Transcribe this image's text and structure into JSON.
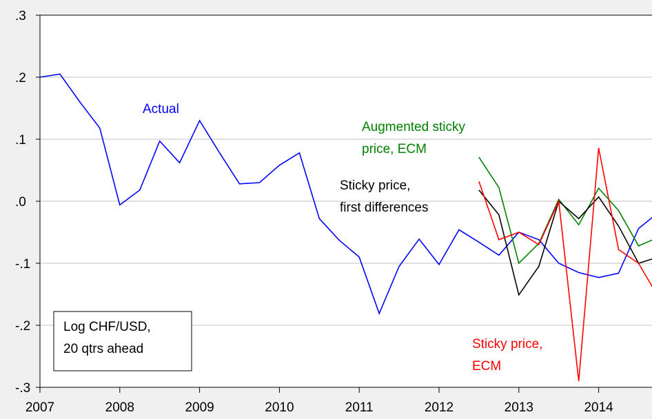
{
  "chart_data": {
    "type": "line",
    "x": [
      2007,
      2007.25,
      2007.5,
      2007.75,
      2008,
      2008.25,
      2008.5,
      2008.75,
      2009,
      2009.25,
      2009.5,
      2009.75,
      2010,
      2010.25,
      2010.5,
      2010.75,
      2011,
      2011.25,
      2011.5,
      2011.75,
      2012,
      2012.25,
      2012.5,
      2012.75,
      2013,
      2013.25,
      2013.5,
      2013.75,
      2014,
      2014.25,
      2014.5,
      2014.75
    ],
    "series": [
      {
        "name": "Actual",
        "color": "#0000ff",
        "values": [
          0.2,
          0.205,
          0.16,
          0.118,
          -0.006,
          0.018,
          0.097,
          0.062,
          0.13,
          0.078,
          0.028,
          0.03,
          0.058,
          0.078,
          -0.028,
          -0.063,
          -0.09,
          -0.181,
          -0.105,
          -0.061,
          -0.102,
          -0.046,
          -0.066,
          -0.087,
          -0.05,
          -0.062,
          -0.1,
          -0.115,
          -0.123,
          -0.116,
          -0.044,
          -0.018
        ]
      },
      {
        "name": "Augmented sticky price, ECM",
        "color": "#008000",
        "values": [
          null,
          null,
          null,
          null,
          null,
          null,
          null,
          null,
          null,
          null,
          null,
          null,
          null,
          null,
          null,
          null,
          null,
          null,
          null,
          null,
          null,
          null,
          0.071,
          0.022,
          -0.1,
          -0.068,
          0.003,
          -0.038,
          0.021,
          -0.015,
          -0.072,
          -0.058
        ]
      },
      {
        "name": "Sticky price, first differences",
        "color": "#000000",
        "values": [
          null,
          null,
          null,
          null,
          null,
          null,
          null,
          null,
          null,
          null,
          null,
          null,
          null,
          null,
          null,
          null,
          null,
          null,
          null,
          null,
          null,
          null,
          0.018,
          -0.022,
          -0.151,
          -0.105,
          0.0,
          -0.028,
          0.007,
          -0.04,
          -0.1,
          -0.09
        ]
      },
      {
        "name": "Sticky price, ECM",
        "color": "#ff0000",
        "values": [
          null,
          null,
          null,
          null,
          null,
          null,
          null,
          null,
          null,
          null,
          null,
          null,
          null,
          null,
          null,
          null,
          null,
          null,
          null,
          null,
          null,
          null,
          0.032,
          -0.062,
          -0.05,
          -0.07,
          0.0,
          -0.29,
          0.086,
          -0.078,
          -0.1,
          -0.155
        ]
      }
    ],
    "xlim": [
      2007,
      2014.67
    ],
    "xticks": [
      2007,
      2008,
      2009,
      2010,
      2011,
      2012,
      2013,
      2014
    ],
    "ylim": [
      -0.3,
      0.3
    ],
    "yticks": [
      {
        "value": -0.3,
        "label": "-.3"
      },
      {
        "value": -0.2,
        "label": "-.2"
      },
      {
        "value": -0.1,
        "label": "-.1"
      },
      {
        "value": 0,
        "label": ".0"
      },
      {
        "value": 0.1,
        "label": ".1"
      },
      {
        "value": 0.2,
        "label": ".2"
      },
      {
        "value": 0.3,
        "label": ".3"
      }
    ],
    "grid": true,
    "annotations": [
      {
        "lines": [
          "Actual"
        ],
        "color": "#0000ff"
      },
      {
        "lines": [
          "Augmented sticky",
          "price, ECM"
        ],
        "color": "#008000"
      },
      {
        "lines": [
          "Sticky price,",
          "first differences"
        ],
        "color": "#000000"
      },
      {
        "lines": [
          "Sticky price,",
          "ECM"
        ],
        "color": "#ff0000"
      },
      {
        "lines": [
          "Log CHF/USD,",
          "20 qtrs ahead"
        ],
        "color": "#000000",
        "boxed": true
      }
    ]
  }
}
